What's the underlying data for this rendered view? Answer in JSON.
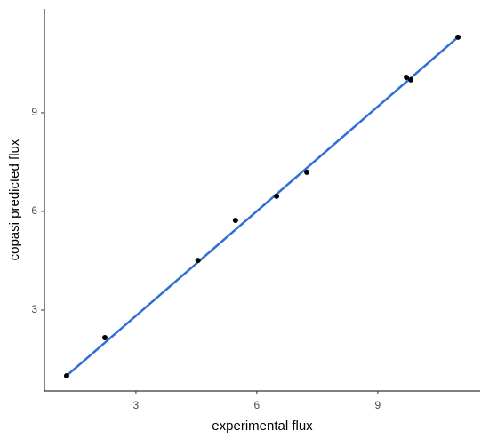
{
  "chart_data": {
    "type": "scatter",
    "x_label": "experimental flux",
    "y_label": "copasi predicted flux",
    "x": [
      1.28,
      2.23,
      4.54,
      5.47,
      6.49,
      7.24,
      9.71,
      9.82,
      10.99
    ],
    "values": [
      1.0,
      2.16,
      4.51,
      5.73,
      6.46,
      7.19,
      10.08,
      10.0,
      11.3
    ],
    "color": "#000000",
    "fit": {
      "x": [
        1.28,
        10.99
      ],
      "y": [
        1.0,
        11.3
      ],
      "color": "#2f6fd6"
    },
    "xlim": [
      0.73,
      11.54
    ],
    "ylim": [
      0.54,
      12.16
    ],
    "xticks": [
      3,
      6,
      9
    ],
    "yticks": [
      3,
      6,
      9
    ],
    "grid": false
  }
}
